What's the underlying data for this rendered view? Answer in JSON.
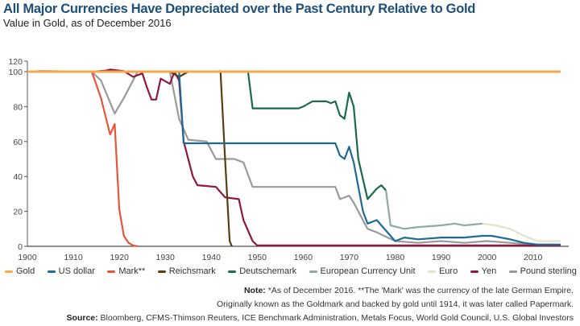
{
  "chart_data": {
    "type": "line",
    "title": "All Major Currencies Have Depreciated over the Past Century Relative to Gold",
    "subtitle": "Value in Gold, as of December 2016",
    "xlabel": "",
    "ylabel": "",
    "xlim": [
      1900,
      2016
    ],
    "ylim": [
      0,
      120
    ],
    "xticks": [
      "1900",
      "1910",
      "1920",
      "1930",
      "1940",
      "1950",
      "1960",
      "1970",
      "1980",
      "1990",
      "2000",
      "2010"
    ],
    "yticks": [
      "0",
      "20",
      "40",
      "60",
      "80",
      "100",
      "120"
    ],
    "legend_position": "bottom",
    "series": [
      {
        "name": "Gold",
        "color": "#f5a84a",
        "points": [
          [
            1900,
            100
          ],
          [
            2016,
            100
          ]
        ]
      },
      {
        "name": "US dollar",
        "color": "#1f6a94",
        "points": [
          [
            1933,
            100
          ],
          [
            1934,
            59
          ],
          [
            1967,
            59
          ],
          [
            1968,
            52
          ],
          [
            1969,
            50
          ],
          [
            1970,
            57
          ],
          [
            1971,
            48
          ],
          [
            1973,
            20
          ],
          [
            1974,
            13
          ],
          [
            1976,
            15
          ],
          [
            1978,
            9
          ],
          [
            1980,
            3
          ],
          [
            1982,
            5
          ],
          [
            1985,
            4
          ],
          [
            1990,
            5
          ],
          [
            1995,
            5
          ],
          [
            1999,
            6
          ],
          [
            2001,
            6
          ],
          [
            2005,
            4
          ],
          [
            2008,
            2
          ],
          [
            2011,
            1
          ],
          [
            2016,
            1
          ]
        ]
      },
      {
        "name": "Mark**",
        "color": "#e8553a",
        "points": [
          [
            1900,
            100
          ],
          [
            1914,
            100
          ],
          [
            1916,
            85
          ],
          [
            1918,
            64
          ],
          [
            1919,
            70
          ],
          [
            1920,
            21
          ],
          [
            1921,
            6
          ],
          [
            1922,
            2
          ],
          [
            1923,
            0.5
          ],
          [
            1924,
            0
          ]
        ]
      },
      {
        "name": "Reichsmark",
        "color": "#5a3d12",
        "points": [
          [
            1931,
            100
          ],
          [
            1933,
            97
          ],
          [
            1935,
            100
          ],
          [
            1941,
            100
          ],
          [
            1942,
            101
          ],
          [
            1943,
            50
          ],
          [
            1944,
            3
          ],
          [
            1944.5,
            0
          ]
        ]
      },
      {
        "name": "Deutschemark",
        "color": "#1b6b4a",
        "points": [
          [
            1948,
            100
          ],
          [
            1949,
            79
          ],
          [
            1959,
            79
          ],
          [
            1960,
            80
          ],
          [
            1962,
            83
          ],
          [
            1965,
            83
          ],
          [
            1966,
            82
          ],
          [
            1967,
            83
          ],
          [
            1968,
            75
          ],
          [
            1969,
            73
          ],
          [
            1970,
            88
          ],
          [
            1971,
            80
          ],
          [
            1972,
            50
          ],
          [
            1974,
            27
          ],
          [
            1976,
            33
          ],
          [
            1977,
            35
          ],
          [
            1978,
            32
          ]
        ]
      },
      {
        "name": "European Currency Unit",
        "color": "#8fa9a3",
        "points": [
          [
            1978,
            32
          ],
          [
            1979,
            12
          ],
          [
            1982,
            10
          ],
          [
            1985,
            11
          ],
          [
            1990,
            12
          ],
          [
            1993,
            13
          ],
          [
            1995,
            12
          ],
          [
            1999,
            13
          ]
        ]
      },
      {
        "name": "Euro",
        "color": "#dfe4cc",
        "points": [
          [
            1999,
            13
          ],
          [
            2002,
            12
          ],
          [
            2005,
            10
          ],
          [
            2008,
            6
          ],
          [
            2011,
            3
          ],
          [
            2016,
            3
          ]
        ]
      },
      {
        "name": "Yen",
        "color": "#8e1744",
        "points": [
          [
            1900,
            100
          ],
          [
            1903,
            101
          ],
          [
            1914,
            100
          ],
          [
            1917,
            102
          ],
          [
            1918,
            104
          ],
          [
            1921,
            101
          ],
          [
            1923,
            97
          ],
          [
            1925,
            99
          ],
          [
            1926,
            91
          ],
          [
            1927,
            84
          ],
          [
            1928,
            84
          ],
          [
            1929,
            96
          ],
          [
            1931,
            93
          ],
          [
            1932,
            100
          ],
          [
            1933,
            95
          ],
          [
            1934,
            60
          ],
          [
            1936,
            40
          ],
          [
            1937,
            35
          ],
          [
            1941,
            34
          ],
          [
            1943,
            28
          ],
          [
            1946,
            27
          ],
          [
            1947,
            15
          ],
          [
            1949,
            3
          ],
          [
            1950,
            0.5
          ],
          [
            2016,
            0.5
          ]
        ]
      },
      {
        "name": "Pound sterling",
        "color": "#9a9a9a",
        "points": [
          [
            1900,
            100
          ],
          [
            1914,
            100
          ],
          [
            1916,
            95
          ],
          [
            1919,
            76
          ],
          [
            1921,
            85
          ],
          [
            1924,
            100
          ],
          [
            1931,
            100
          ],
          [
            1933,
            73
          ],
          [
            1935,
            61
          ],
          [
            1939,
            60
          ],
          [
            1941,
            50
          ],
          [
            1945,
            50
          ],
          [
            1947,
            48
          ],
          [
            1949,
            34
          ],
          [
            1967,
            34
          ],
          [
            1968,
            27
          ],
          [
            1970,
            29
          ],
          [
            1971,
            25
          ],
          [
            1974,
            10
          ],
          [
            1976,
            8
          ],
          [
            1980,
            3
          ],
          [
            1985,
            2
          ],
          [
            1990,
            3
          ],
          [
            1995,
            2
          ],
          [
            2000,
            3
          ],
          [
            2005,
            2
          ],
          [
            2010,
            1
          ],
          [
            2016,
            1
          ]
        ]
      }
    ]
  },
  "notes": {
    "note_label": "Note:",
    "note_line1": " *As of December 2016. **The 'Mark' was the currency of the late German Empire.",
    "note_line2": "Originally known as the Goldmark and backed by gold until 1914, it was later called Papermark.",
    "source_label": "Source:",
    "source_text": " Bloomberg, CFMS-Thimson Reuters, ICE Benchmark Administration, Metals Focus, World Gold Council, U.S. Global Investors"
  }
}
